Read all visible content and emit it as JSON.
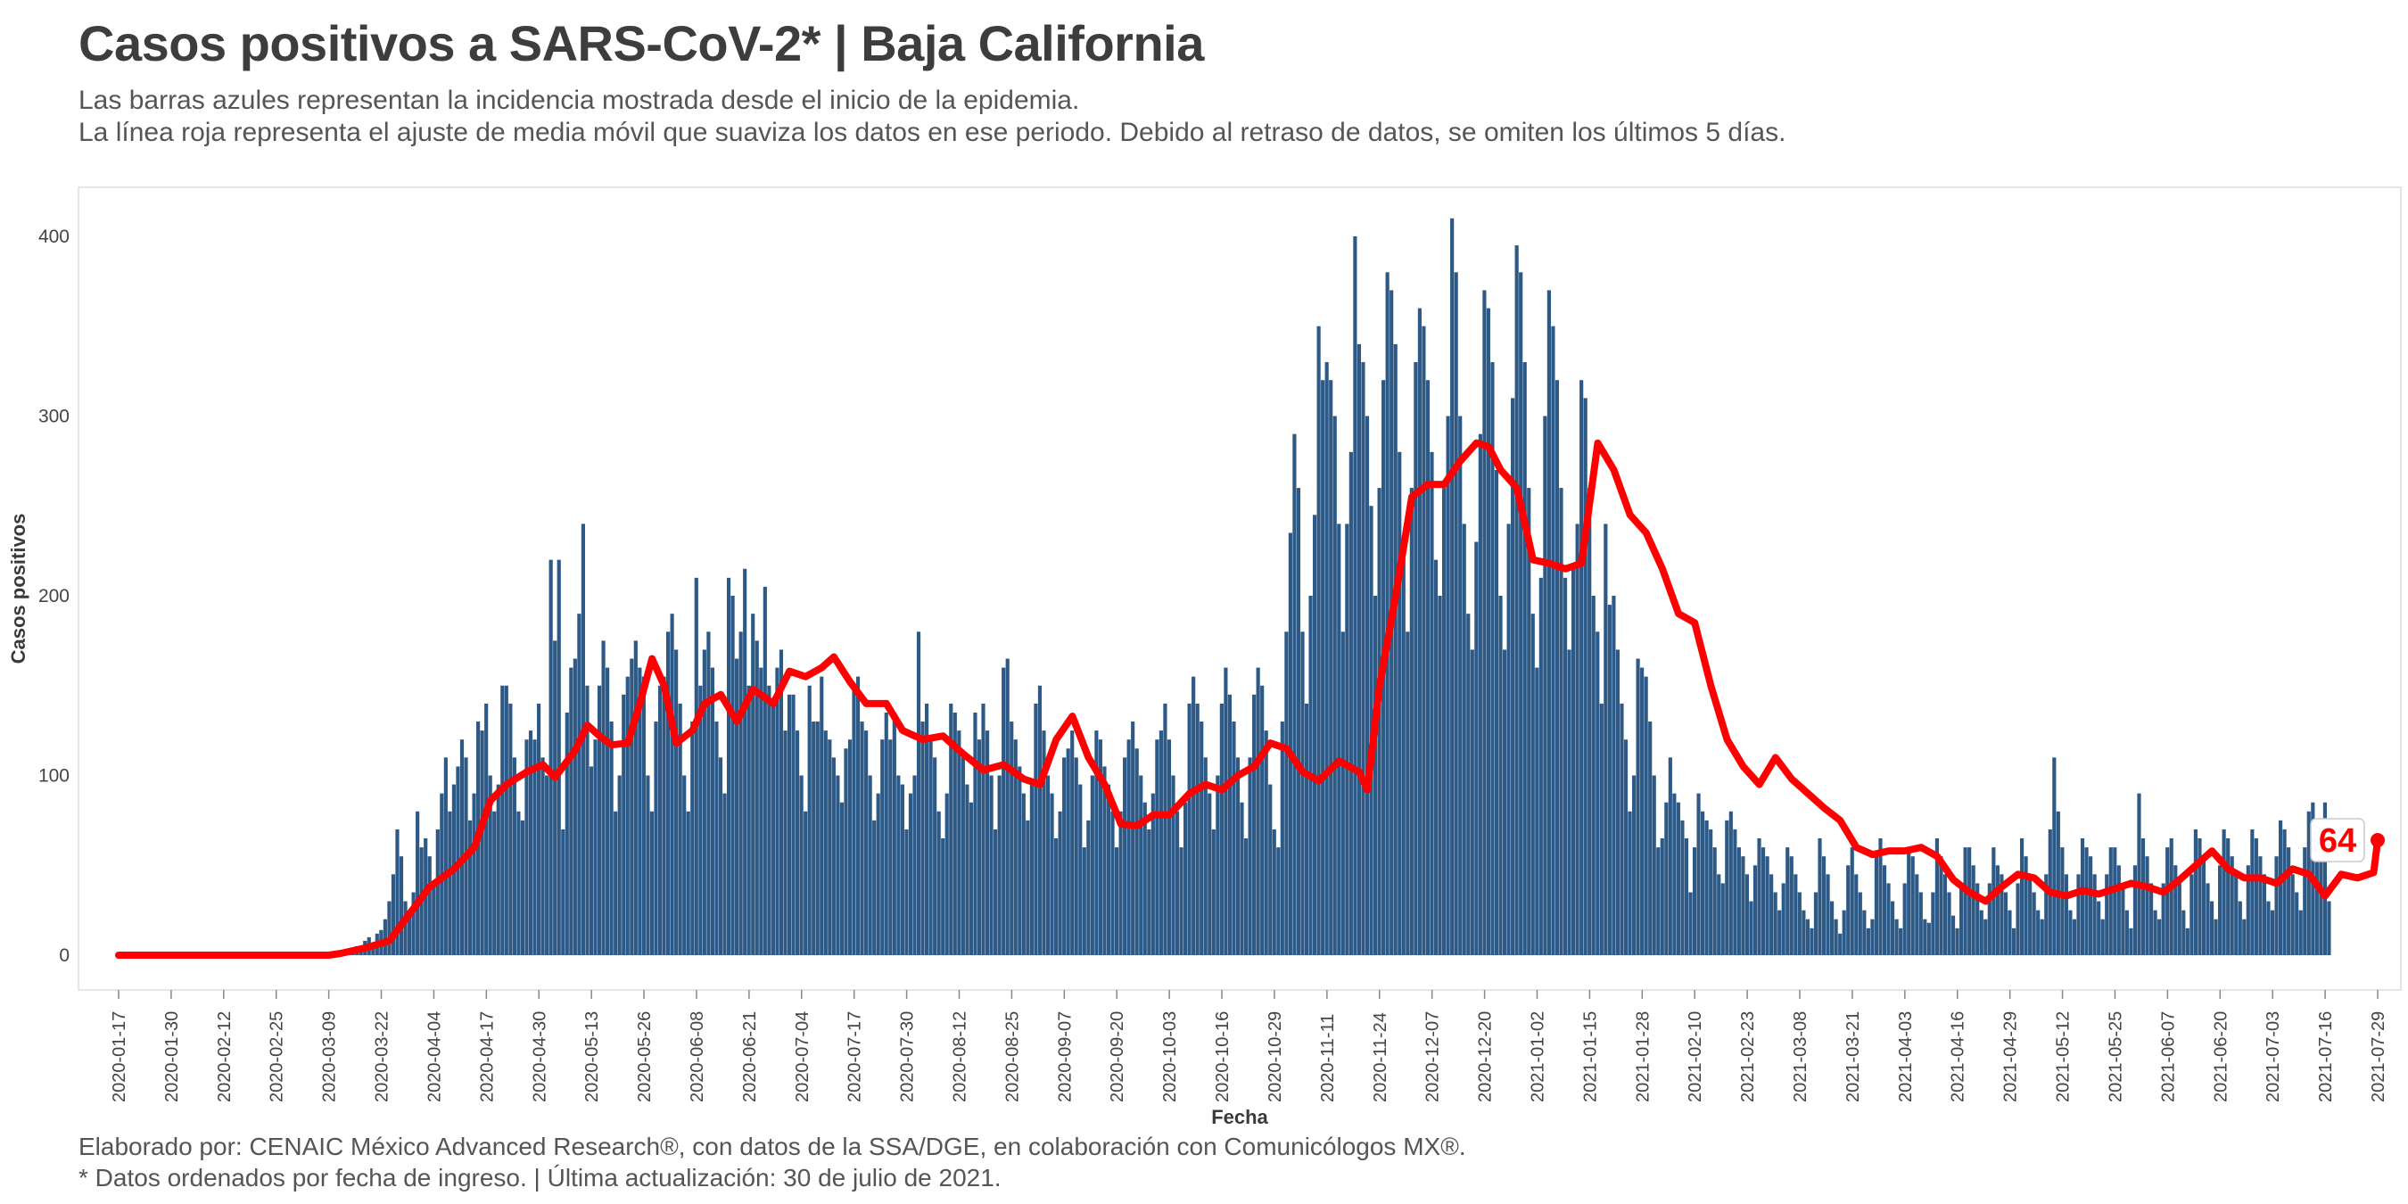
{
  "title": "Casos positivos a SARS-CoV-2* | Baja California",
  "subtitle_lines": [
    "Las barras azules representan la incidencia mostrada desde el inicio de la epidemia.",
    "La línea roja representa el ajuste de media móvil que suaviza los datos en ese periodo. Debido al retraso de datos, se omiten los últimos 5 días."
  ],
  "caption_lines": [
    "Elaborado por: CENAIC México Advanced Research®, con datos de la SSA/DGE, en colaboración con Comunicólogos MX®.",
    "* Datos ordenados por fecha de ingreso. | Última actualización: 30 de julio de 2021."
  ],
  "colors": {
    "bars": "#2d5986",
    "line": "#ff0000",
    "label_text": "#ff0000",
    "grid_panel": "#dddddd"
  },
  "chart_data": {
    "type": "bar",
    "xlabel": "Fecha",
    "ylabel": "Casos positivos",
    "x_start": "2020-01-17",
    "x_end": "2021-07-29",
    "ylim": [
      -20,
      420
    ],
    "yticks": [
      0,
      100,
      200,
      300,
      400
    ],
    "xticks": [
      "2020-01-17",
      "2020-01-30",
      "2020-02-12",
      "2020-02-25",
      "2020-03-09",
      "2020-03-22",
      "2020-04-04",
      "2020-04-17",
      "2020-04-30",
      "2020-05-13",
      "2020-05-26",
      "2020-06-08",
      "2020-06-21",
      "2020-07-04",
      "2020-07-17",
      "2020-07-30",
      "2020-08-12",
      "2020-08-25",
      "2020-09-07",
      "2020-09-20",
      "2020-10-03",
      "2020-10-16",
      "2020-10-29",
      "2020-11-11",
      "2020-11-24",
      "2020-12-07",
      "2020-12-20",
      "2021-01-02",
      "2021-01-15",
      "2021-01-28",
      "2021-02-10",
      "2021-02-23",
      "2021-03-08",
      "2021-03-21",
      "2021-04-03",
      "2021-04-16",
      "2021-04-29",
      "2021-05-12",
      "2021-05-25",
      "2021-06-07",
      "2021-06-20",
      "2021-07-03",
      "2021-07-16",
      "2021-07-29"
    ],
    "bars": {
      "name": "Casos positivos",
      "first_date": "2020-03-12",
      "last_date": "2021-07-25",
      "values": [
        1,
        2,
        3,
        3,
        5,
        4,
        8,
        10,
        6,
        12,
        14,
        20,
        30,
        45,
        70,
        55,
        30,
        25,
        35,
        80,
        60,
        65,
        55,
        40,
        70,
        90,
        110,
        80,
        95,
        105,
        120,
        110,
        75,
        90,
        130,
        125,
        140,
        100,
        80,
        95,
        150,
        150,
        140,
        110,
        80,
        75,
        120,
        125,
        120,
        140,
        110,
        100,
        220,
        175,
        220,
        70,
        135,
        160,
        165,
        190,
        240,
        150,
        105,
        120,
        150,
        175,
        160,
        130,
        80,
        100,
        145,
        155,
        165,
        175,
        160,
        155,
        100,
        80,
        130,
        150,
        155,
        180,
        190,
        170,
        140,
        100,
        80,
        130,
        210,
        150,
        170,
        180,
        160,
        130,
        110,
        90,
        210,
        200,
        165,
        180,
        215,
        150,
        190,
        175,
        160,
        205,
        150,
        140,
        160,
        170,
        125,
        145,
        145,
        125,
        100,
        80,
        150,
        130,
        130,
        155,
        125,
        120,
        110,
        100,
        85,
        115,
        120,
        150,
        155,
        130,
        125,
        100,
        75,
        90,
        120,
        135,
        120,
        135,
        100,
        95,
        70,
        90,
        100,
        180,
        130,
        140,
        120,
        110,
        80,
        65,
        90,
        140,
        135,
        125,
        110,
        95,
        85,
        135,
        120,
        140,
        125,
        100,
        70,
        100,
        160,
        165,
        130,
        120,
        105,
        90,
        75,
        95,
        140,
        150,
        125,
        100,
        90,
        65,
        80,
        110,
        115,
        125,
        110,
        95,
        60,
        75,
        100,
        125,
        120,
        105,
        95,
        80,
        60,
        80,
        110,
        120,
        130,
        115,
        100,
        85,
        70,
        90,
        120,
        125,
        140,
        120,
        100,
        80,
        60,
        85,
        140,
        155,
        140,
        130,
        110,
        90,
        70,
        100,
        140,
        160,
        145,
        130,
        110,
        85,
        65,
        110,
        145,
        160,
        150,
        125,
        95,
        70,
        60,
        130,
        180,
        235,
        290,
        260,
        180,
        140,
        200,
        245,
        350,
        320,
        330,
        320,
        300,
        240,
        180,
        240,
        280,
        400,
        340,
        330,
        300,
        250,
        200,
        260,
        320,
        380,
        370,
        340,
        280,
        230,
        180,
        260,
        330,
        360,
        350,
        320,
        280,
        220,
        200,
        260,
        300,
        410,
        380,
        300,
        240,
        190,
        170,
        230,
        290,
        370,
        360,
        330,
        270,
        200,
        170,
        240,
        310,
        395,
        380,
        330,
        260,
        190,
        160,
        210,
        300,
        370,
        350,
        320,
        260,
        210,
        170,
        215,
        240,
        320,
        310,
        260,
        200,
        180,
        140,
        240,
        195,
        200,
        170,
        140,
        120,
        80,
        100,
        165,
        160,
        155,
        130,
        100,
        60,
        65,
        85,
        110,
        90,
        85,
        75,
        65,
        35,
        60,
        90,
        80,
        75,
        70,
        60,
        45,
        40,
        75,
        80,
        70,
        60,
        55,
        45,
        30,
        50,
        65,
        60,
        55,
        45,
        35,
        25,
        40,
        60,
        55,
        45,
        35,
        25,
        20,
        15,
        35,
        65,
        55,
        45,
        30,
        20,
        12,
        25,
        50,
        60,
        45,
        35,
        25,
        15,
        20,
        55,
        65,
        50,
        40,
        30,
        20,
        15,
        40,
        60,
        55,
        45,
        35,
        20,
        18,
        35,
        65,
        55,
        45,
        35,
        22,
        15,
        40,
        60,
        60,
        50,
        40,
        25,
        20,
        40,
        60,
        50,
        45,
        35,
        25,
        15,
        40,
        65,
        55,
        45,
        35,
        25,
        20,
        45,
        70,
        110,
        80,
        60,
        45,
        25,
        20,
        45,
        65,
        60,
        55,
        45,
        30,
        20,
        45,
        60,
        60,
        50,
        40,
        25,
        15,
        50,
        90,
        65,
        55,
        40,
        25,
        20,
        40,
        60,
        65,
        50,
        40,
        25,
        15,
        45,
        70,
        65,
        55,
        40,
        30,
        20,
        50,
        70,
        65,
        55,
        45,
        30,
        20,
        50,
        70,
        65,
        55,
        45,
        30,
        25,
        55,
        75,
        70,
        60,
        45,
        35,
        25,
        60,
        80,
        85,
        75,
        65,
        85,
        30
      ]
    },
    "line": {
      "name": "Media móvil",
      "first_date": "2020-01-17",
      "points": [
        [
          "2020-01-17",
          0
        ],
        [
          "2020-03-09",
          0
        ],
        [
          "2020-03-12",
          1
        ],
        [
          "2020-03-18",
          4
        ],
        [
          "2020-03-24",
          8
        ],
        [
          "2020-03-28",
          20
        ],
        [
          "2020-04-03",
          38
        ],
        [
          "2020-04-09",
          48
        ],
        [
          "2020-04-14",
          60
        ],
        [
          "2020-04-18",
          86
        ],
        [
          "2020-04-22",
          95
        ],
        [
          "2020-04-27",
          102
        ],
        [
          "2020-05-01",
          106
        ],
        [
          "2020-05-04",
          99
        ],
        [
          "2020-05-09",
          114
        ],
        [
          "2020-05-12",
          128
        ],
        [
          "2020-05-15",
          122
        ],
        [
          "2020-05-18",
          117
        ],
        [
          "2020-05-22",
          118
        ],
        [
          "2020-05-25",
          140
        ],
        [
          "2020-05-28",
          165
        ],
        [
          "2020-05-31",
          150
        ],
        [
          "2020-06-03",
          118
        ],
        [
          "2020-06-07",
          125
        ],
        [
          "2020-06-10",
          140
        ],
        [
          "2020-06-14",
          145
        ],
        [
          "2020-06-18",
          130
        ],
        [
          "2020-06-22",
          148
        ],
        [
          "2020-06-27",
          140
        ],
        [
          "2020-07-01",
          158
        ],
        [
          "2020-07-05",
          155
        ],
        [
          "2020-07-09",
          160
        ],
        [
          "2020-07-12",
          166
        ],
        [
          "2020-07-16",
          152
        ],
        [
          "2020-07-20",
          140
        ],
        [
          "2020-07-25",
          140
        ],
        [
          "2020-07-29",
          125
        ],
        [
          "2020-08-03",
          120
        ],
        [
          "2020-08-08",
          122
        ],
        [
          "2020-08-13",
          112
        ],
        [
          "2020-08-18",
          103
        ],
        [
          "2020-08-23",
          106
        ],
        [
          "2020-08-28",
          98
        ],
        [
          "2020-09-01",
          95
        ],
        [
          "2020-09-05",
          120
        ],
        [
          "2020-09-09",
          133
        ],
        [
          "2020-09-13",
          110
        ],
        [
          "2020-09-17",
          95
        ],
        [
          "2020-09-21",
          73
        ],
        [
          "2020-09-25",
          72
        ],
        [
          "2020-09-29",
          78
        ],
        [
          "2020-10-03",
          78
        ],
        [
          "2020-10-08",
          90
        ],
        [
          "2020-10-12",
          95
        ],
        [
          "2020-10-16",
          92
        ],
        [
          "2020-10-20",
          100
        ],
        [
          "2020-10-24",
          105
        ],
        [
          "2020-10-28",
          118
        ],
        [
          "2020-11-01",
          115
        ],
        [
          "2020-11-05",
          102
        ],
        [
          "2020-11-09",
          97
        ],
        [
          "2020-11-14",
          108
        ],
        [
          "2020-11-19",
          102
        ],
        [
          "2020-11-21",
          92
        ],
        [
          "2020-11-24",
          150
        ],
        [
          "2020-11-28",
          200
        ],
        [
          "2020-12-02",
          255
        ],
        [
          "2020-12-06",
          262
        ],
        [
          "2020-12-10",
          262
        ],
        [
          "2020-12-14",
          275
        ],
        [
          "2020-12-18",
          285
        ],
        [
          "2020-12-21",
          283
        ],
        [
          "2020-12-24",
          270
        ],
        [
          "2020-12-28",
          260
        ],
        [
          "2021-01-01",
          220
        ],
        [
          "2021-01-05",
          218
        ],
        [
          "2021-01-09",
          215
        ],
        [
          "2021-01-13",
          218
        ],
        [
          "2021-01-17",
          285
        ],
        [
          "2021-01-21",
          270
        ],
        [
          "2021-01-25",
          245
        ],
        [
          "2021-01-29",
          235
        ],
        [
          "2021-02-02",
          215
        ],
        [
          "2021-02-06",
          190
        ],
        [
          "2021-02-10",
          185
        ],
        [
          "2021-02-14",
          150
        ],
        [
          "2021-02-18",
          120
        ],
        [
          "2021-02-22",
          105
        ],
        [
          "2021-02-26",
          95
        ],
        [
          "2021-03-02",
          110
        ],
        [
          "2021-03-06",
          98
        ],
        [
          "2021-03-10",
          90
        ],
        [
          "2021-03-14",
          82
        ],
        [
          "2021-03-18",
          75
        ],
        [
          "2021-03-22",
          60
        ],
        [
          "2021-03-26",
          56
        ],
        [
          "2021-03-30",
          58
        ],
        [
          "2021-04-03",
          58
        ],
        [
          "2021-04-07",
          60
        ],
        [
          "2021-04-11",
          55
        ],
        [
          "2021-04-15",
          42
        ],
        [
          "2021-04-19",
          35
        ],
        [
          "2021-04-23",
          30
        ],
        [
          "2021-04-27",
          38
        ],
        [
          "2021-05-01",
          45
        ],
        [
          "2021-05-05",
          43
        ],
        [
          "2021-05-09",
          35
        ],
        [
          "2021-05-13",
          33
        ],
        [
          "2021-05-17",
          36
        ],
        [
          "2021-05-21",
          34
        ],
        [
          "2021-05-25",
          37
        ],
        [
          "2021-05-29",
          40
        ],
        [
          "2021-06-02",
          38
        ],
        [
          "2021-06-06",
          35
        ],
        [
          "2021-06-10",
          42
        ],
        [
          "2021-06-14",
          50
        ],
        [
          "2021-06-18",
          58
        ],
        [
          "2021-06-22",
          48
        ],
        [
          "2021-06-26",
          43
        ],
        [
          "2021-06-30",
          43
        ],
        [
          "2021-07-04",
          40
        ],
        [
          "2021-07-08",
          48
        ],
        [
          "2021-07-12",
          45
        ],
        [
          "2021-07-16",
          33
        ],
        [
          "2021-07-20",
          45
        ],
        [
          "2021-07-24",
          43
        ],
        [
          "2021-07-28",
          46
        ],
        [
          "2021-07-29",
          64
        ]
      ]
    },
    "end_label": "64"
  }
}
